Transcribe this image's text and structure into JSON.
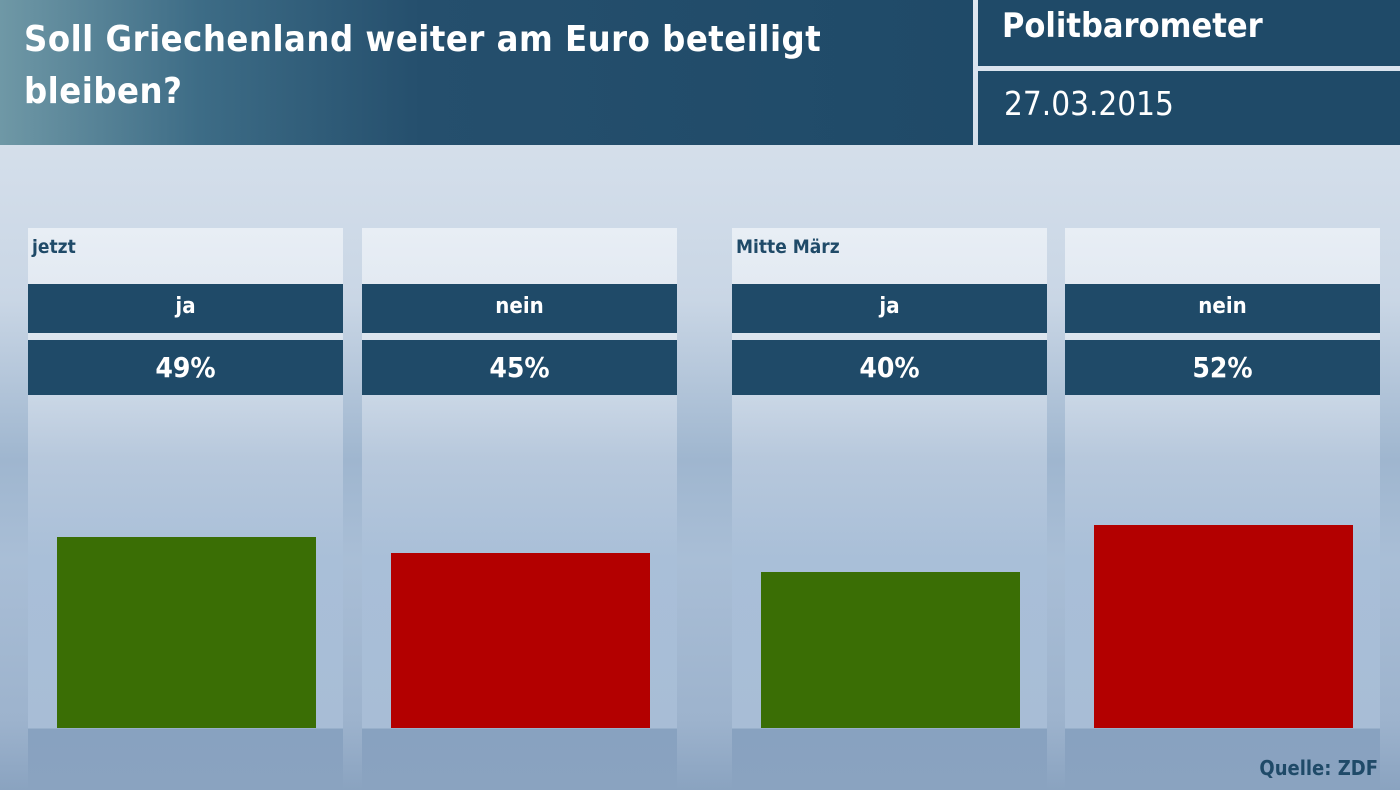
{
  "header": {
    "title": "Soll Griechenland weiter am Euro beteiligt bleiben?",
    "brand": "Politbarometer",
    "date": "27.03.2015"
  },
  "chart_data": {
    "type": "bar",
    "title": "Soll Griechenland weiter am Euro beteiligt bleiben?",
    "groups": [
      {
        "label": "jetzt",
        "bars": [
          {
            "category": "ja",
            "value": 49,
            "label": "49%",
            "color": "#3a6e05"
          },
          {
            "category": "nein",
            "value": 45,
            "label": "45%",
            "color": "#b30000"
          }
        ]
      },
      {
        "label": "Mitte März",
        "bars": [
          {
            "category": "ja",
            "value": 40,
            "label": "40%",
            "color": "#3a6e05"
          },
          {
            "category": "nein",
            "value": 52,
            "label": "52%",
            "color": "#b30000"
          }
        ]
      }
    ],
    "unit": "%",
    "ylim": [
      0,
      100
    ],
    "grid": false
  },
  "source": "Quelle: ZDF"
}
